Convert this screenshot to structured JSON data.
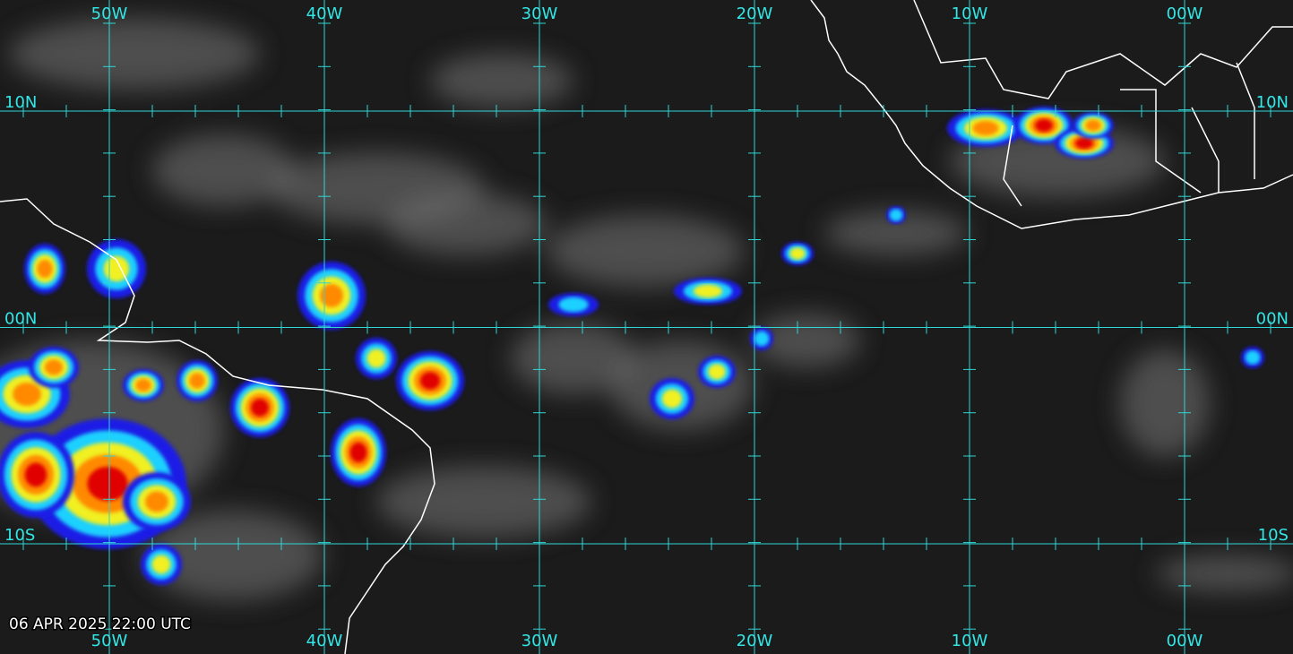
{
  "map": {
    "longitudes": [
      "50W",
      "40W",
      "30W",
      "20W",
      "10W",
      "00W"
    ],
    "latitudes": [
      "10N",
      "00N",
      "10S"
    ],
    "timestamp": "06 APR 2025 22:00 UTC"
  }
}
